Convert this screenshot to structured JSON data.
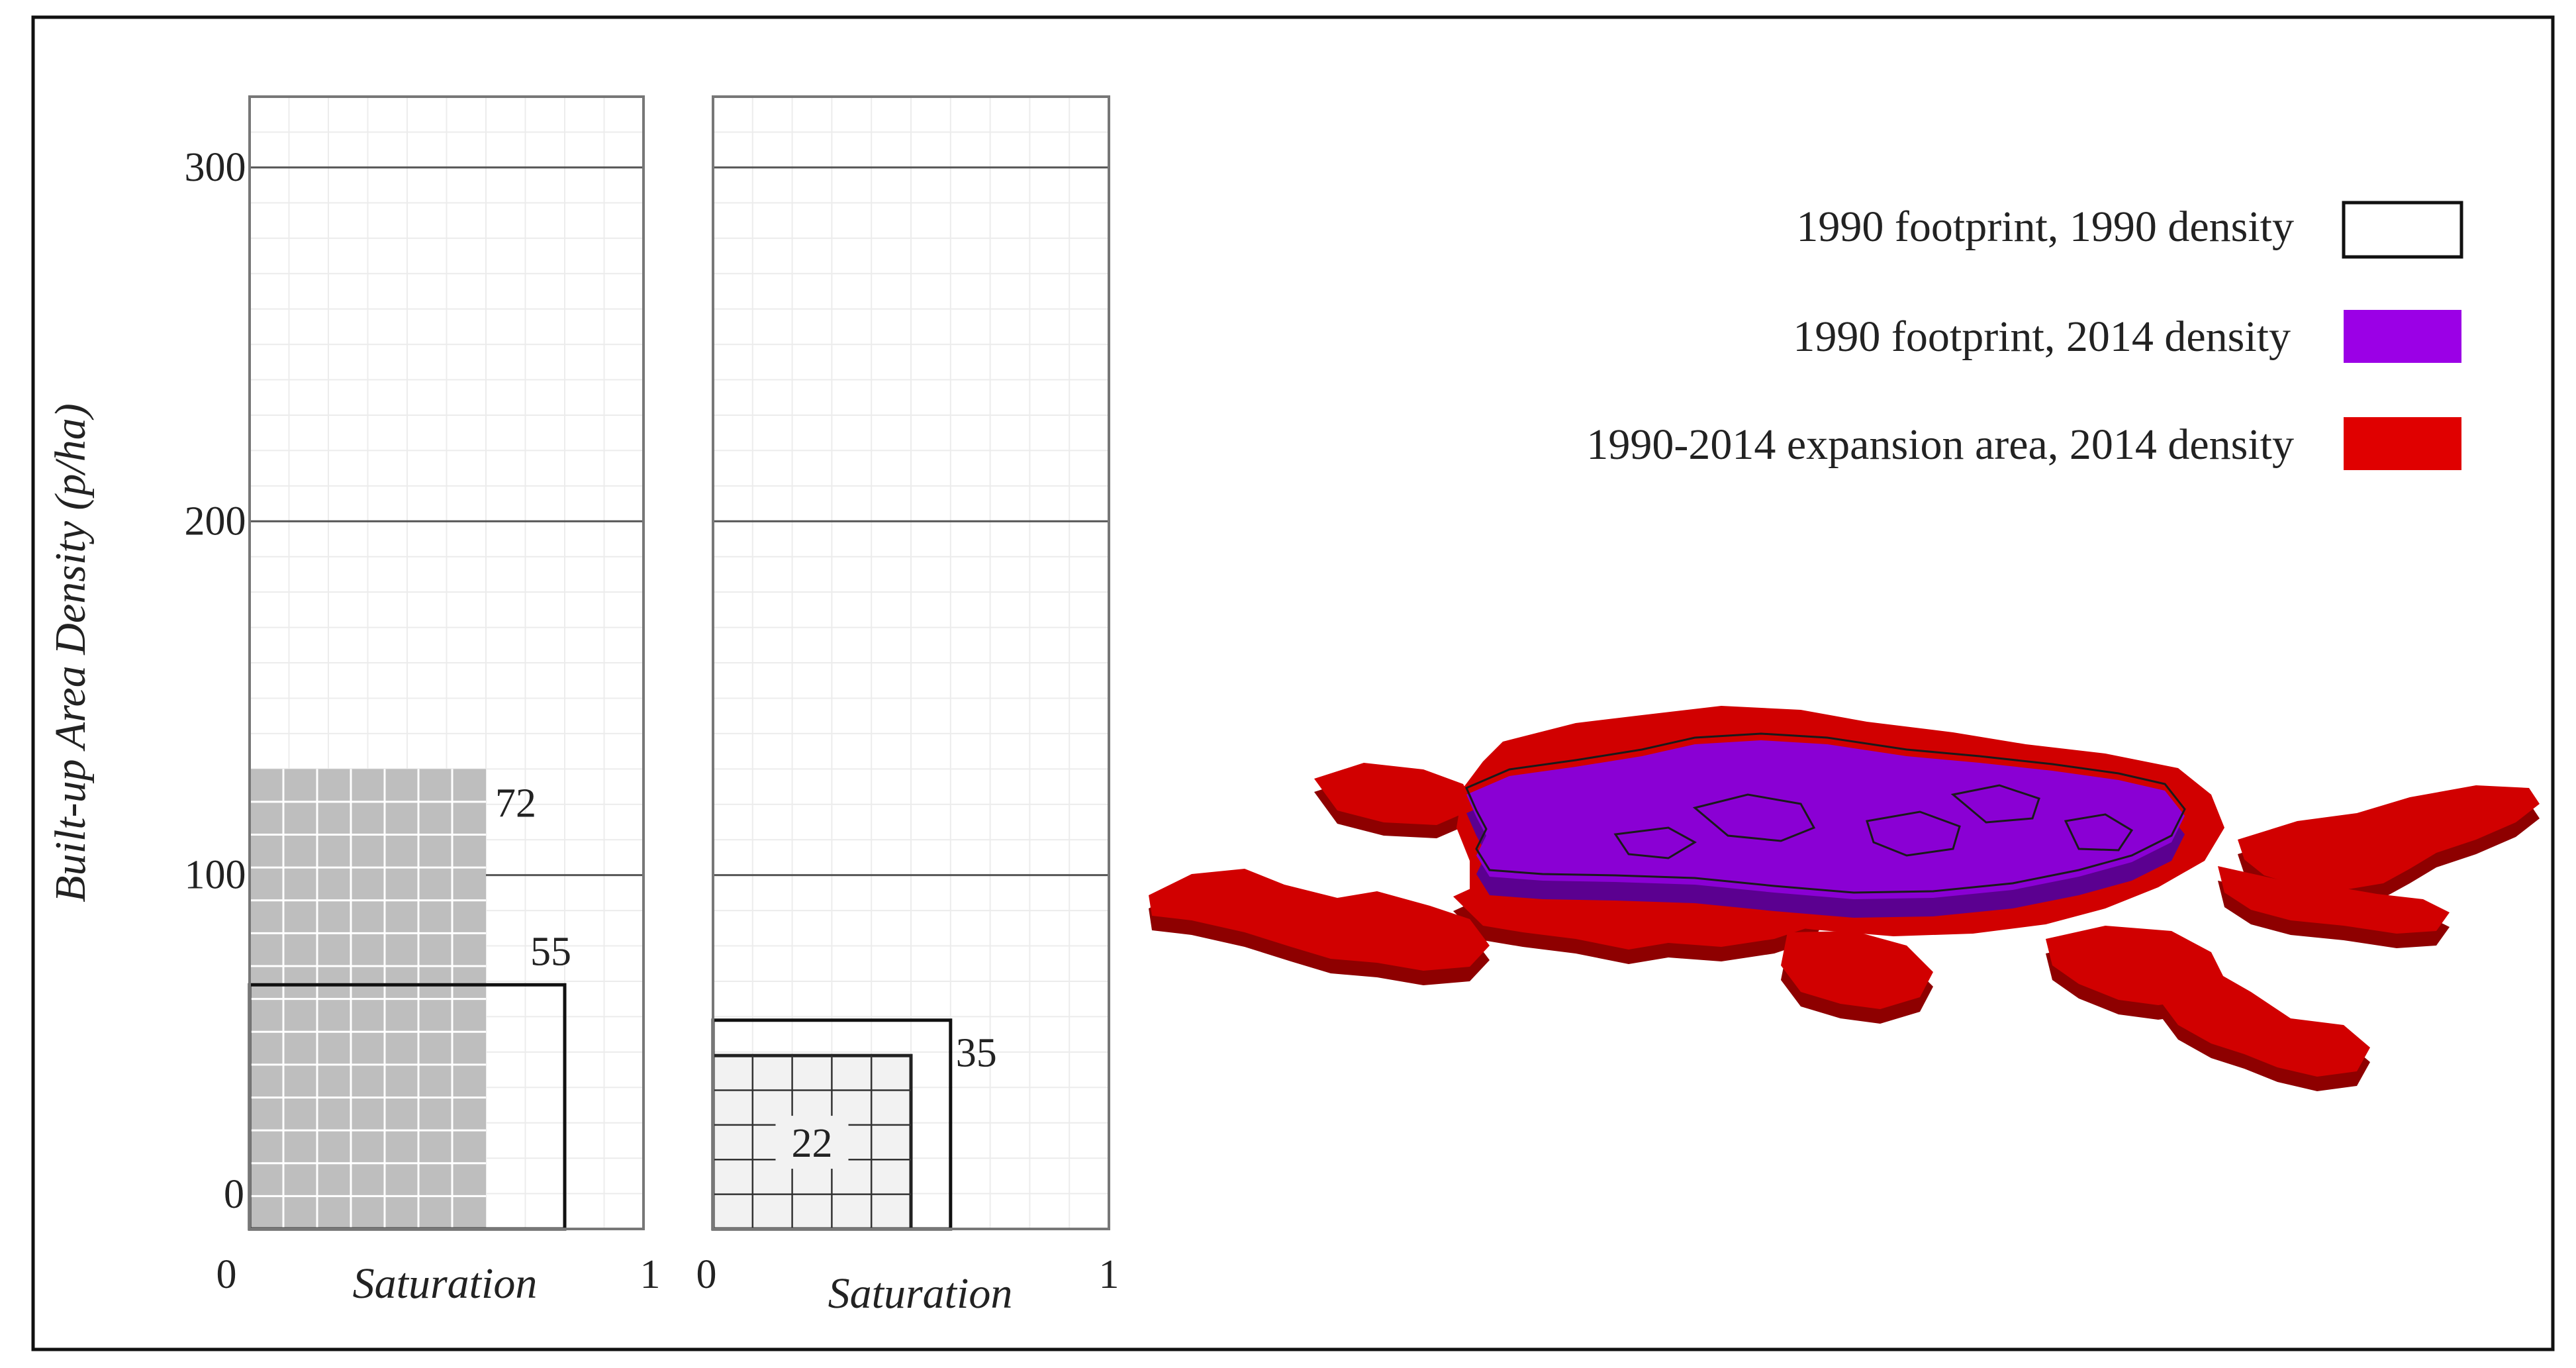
{
  "colors": {
    "legend_2014_footprint": "#9B00E6",
    "legend_expansion": "#E00000",
    "map_purple": "#8A00D4",
    "map_purple_side": "#5B0090",
    "map_red": "#D10000",
    "map_red_side": "#8E0000",
    "shaded_box": "#BEBEBE",
    "light_box": "#F2F2F2"
  },
  "chart_data": [
    {
      "type": "bar",
      "ylabel": "Built-up Area Density (p/ha)",
      "xlabel": "Saturation",
      "ylim": [
        0,
        320
      ],
      "xlim": [
        0,
        1
      ],
      "yticks": [
        0,
        100,
        200,
        300
      ],
      "xticks": [
        "0",
        "1"
      ],
      "grid": true,
      "boxes": [
        {
          "label": "72",
          "height": 130,
          "saturation": 0.6,
          "style": "shaded"
        },
        {
          "label": "55",
          "height": 69,
          "saturation": 0.8,
          "style": "outline"
        }
      ]
    },
    {
      "type": "bar",
      "ylabel": "",
      "xlabel": "Saturation",
      "ylim": [
        0,
        320
      ],
      "xlim": [
        0,
        1
      ],
      "yticks": [
        0,
        100,
        200,
        300
      ],
      "xticks": [
        "0",
        "1"
      ],
      "grid": true,
      "boxes": [
        {
          "label": "22",
          "height": 49,
          "saturation": 0.5,
          "style": "light-grid"
        },
        {
          "label": "35",
          "height": 59,
          "saturation": 0.6,
          "style": "outline"
        }
      ]
    }
  ],
  "legend": {
    "items": [
      {
        "label": "1990 footprint, 1990 density",
        "swatch": "outline"
      },
      {
        "label": "1990 footprint, 2014 density",
        "swatch": "purple"
      },
      {
        "label": "1990-2014 expansion area, 2014 density",
        "swatch": "red"
      }
    ]
  }
}
